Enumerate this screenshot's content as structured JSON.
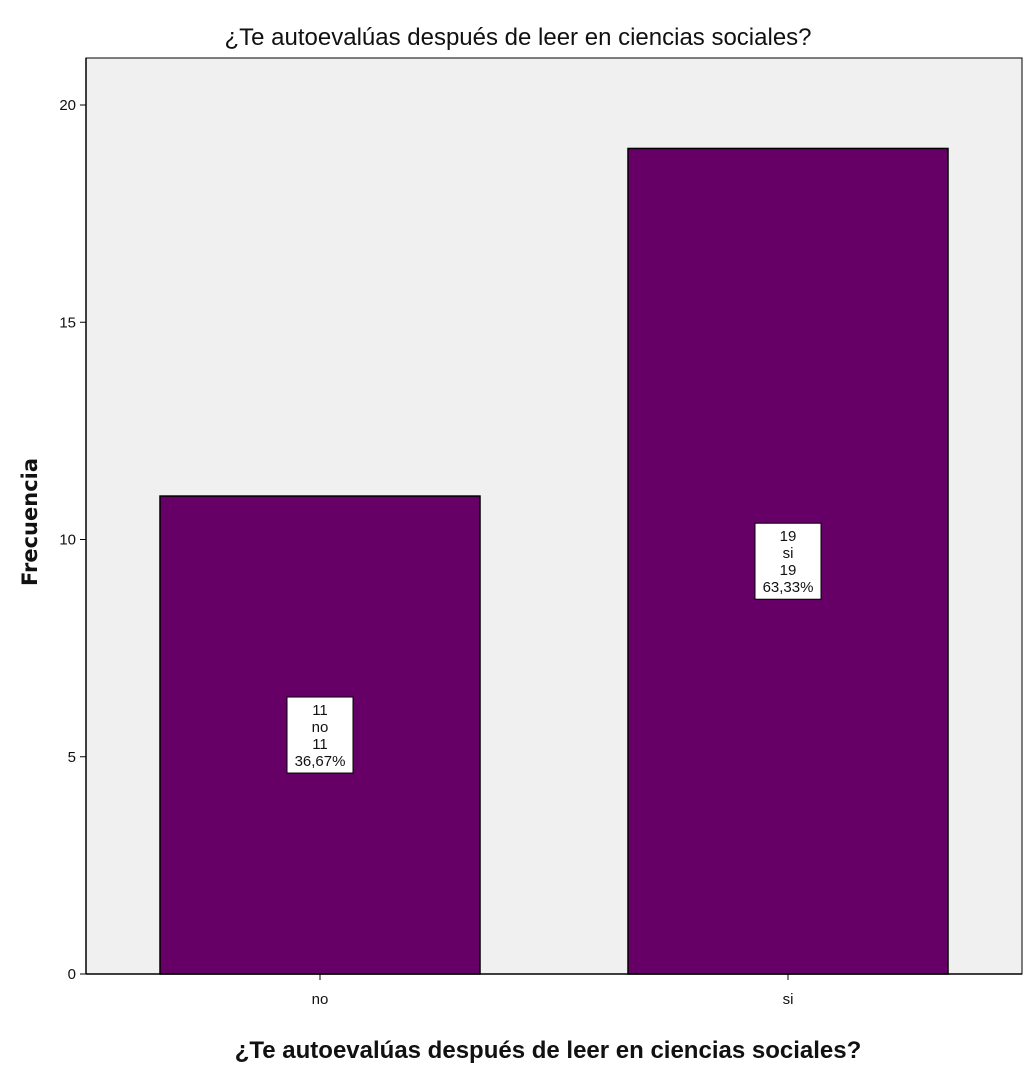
{
  "chart_data": {
    "type": "bar",
    "title": "¿Te autoevalúas después de leer en ciencias sociales?",
    "xlabel": "¿Te autoevalúas después de leer en ciencias sociales?",
    "ylabel": "Frecuencia",
    "categories": [
      "no",
      "si"
    ],
    "values": [
      11,
      19
    ],
    "ylim": [
      0,
      21
    ],
    "yticks": [
      0,
      5,
      10,
      15,
      20
    ],
    "grid": false,
    "legend": "none",
    "data_labels": [
      [
        "11",
        "no",
        "11",
        "36,67%"
      ],
      [
        "19",
        "si",
        "19",
        "63,33%"
      ]
    ],
    "colors": {
      "bar": "#660066",
      "plot_background": "#f0f0f0",
      "label_box": "#ffffff"
    }
  }
}
